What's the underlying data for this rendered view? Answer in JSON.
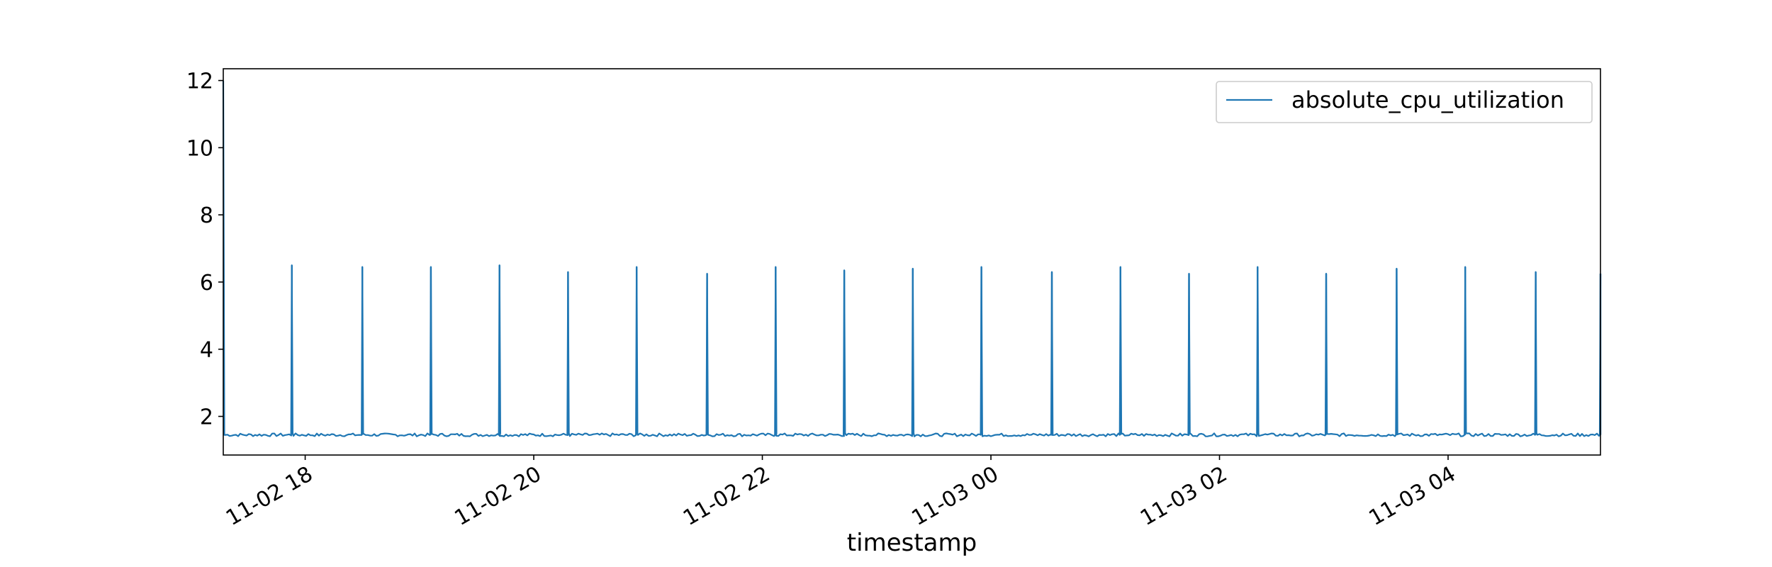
{
  "chart_data": {
    "type": "line",
    "xlabel": "timestamp",
    "ylabel": "",
    "title": "",
    "x_tick_labels": [
      "11-02 18",
      "11-02 20",
      "11-02 22",
      "11-03 00",
      "11-03 02",
      "11-03 04"
    ],
    "x_range": [
      "2023-11-02T17:17",
      "2023-11-03T05:20"
    ],
    "y_ticks": [
      2,
      4,
      6,
      8,
      10,
      12
    ],
    "ylim": [
      0.85,
      12.35
    ],
    "grid": false,
    "legend_position": "top-right",
    "baseline": 1.45,
    "series": [
      {
        "name": "absolute_cpu_utilization",
        "color": "#1f77b4",
        "start": {
          "time": "2023-11-02T17:17",
          "value": 12.0
        },
        "spikes": [
          {
            "time": "2023-11-02T17:53",
            "value": 6.5
          },
          {
            "time": "2023-11-02T18:30",
            "value": 6.45
          },
          {
            "time": "2023-11-02T19:06",
            "value": 6.45
          },
          {
            "time": "2023-11-02T19:42",
            "value": 6.5
          },
          {
            "time": "2023-11-02T20:18",
            "value": 6.3
          },
          {
            "time": "2023-11-02T20:54",
            "value": 6.45
          },
          {
            "time": "2023-11-02T21:31",
            "value": 6.25
          },
          {
            "time": "2023-11-02T22:07",
            "value": 6.45
          },
          {
            "time": "2023-11-02T22:43",
            "value": 6.35
          },
          {
            "time": "2023-11-02T23:19",
            "value": 6.4
          },
          {
            "time": "2023-11-02T23:55",
            "value": 6.45
          },
          {
            "time": "2023-11-03T00:32",
            "value": 6.3
          },
          {
            "time": "2023-11-03T01:08",
            "value": 6.45
          },
          {
            "time": "2023-11-03T01:44",
            "value": 6.25
          },
          {
            "time": "2023-11-03T02:20",
            "value": 6.45
          },
          {
            "time": "2023-11-03T02:56",
            "value": 6.25
          },
          {
            "time": "2023-11-03T03:33",
            "value": 6.4
          },
          {
            "time": "2023-11-03T04:09",
            "value": 6.45
          },
          {
            "time": "2023-11-03T04:46",
            "value": 6.3
          },
          {
            "time": "2023-11-03T05:20",
            "value": 6.25
          }
        ]
      }
    ]
  }
}
